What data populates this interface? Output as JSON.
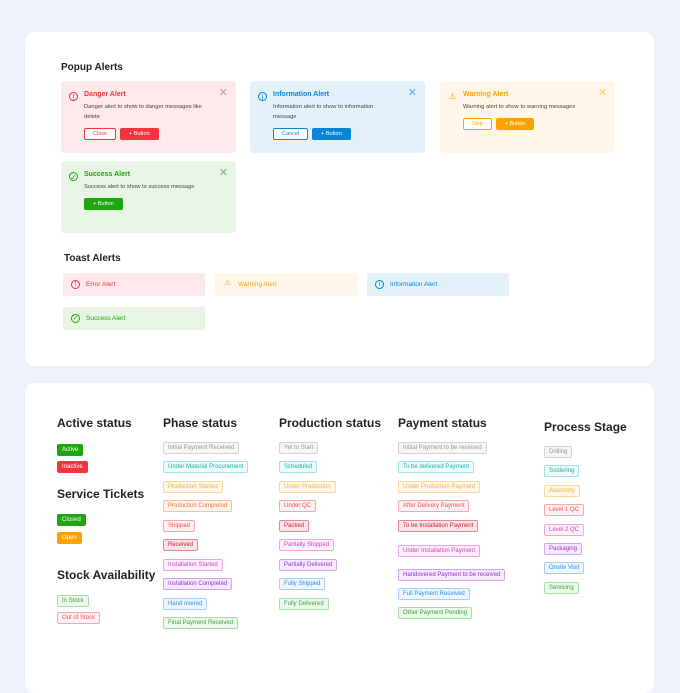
{
  "popup_alerts": {
    "title": "Popup Alerts",
    "danger": {
      "title": "Danger Alert",
      "message": "Danger alert to show to danger messages like delete",
      "secondary": "Close",
      "primary": "+ Button",
      "color": "#f5333f",
      "bg": "#fde8ea"
    },
    "info": {
      "title": "Information Alert",
      "message": "Information alert to show to information message",
      "secondary": "Cancel",
      "primary": "+ Button",
      "color": "#0a84d6",
      "bg": "#e3f1fb"
    },
    "warning": {
      "title": "Warning Alert",
      "message": "Warning alert to show to warning messages",
      "secondary": "Skip",
      "primary": "+ Button",
      "color": "#ffa200",
      "bg": "#fff5e8"
    },
    "success": {
      "title": "Success Alert",
      "message": "Success alert to show to success message",
      "primary": "+ Button",
      "color": "#1ea50f",
      "bg": "#e8f5e4"
    }
  },
  "toast_alerts": {
    "title": "Toast Alerts",
    "error": "Error Alert",
    "warning": "Warning Alert",
    "info": "Information Alert",
    "success": "Success Alert"
  },
  "active_status": {
    "title": "Active status",
    "items": [
      "Active",
      "Inactive"
    ]
  },
  "service_tickets": {
    "title": "Service Tickets",
    "items": [
      "Closed",
      "Open"
    ]
  },
  "stock": {
    "title": "Stock Availability",
    "items": [
      "In Stock",
      "Out of Stock"
    ]
  },
  "phase": {
    "title": "Phase status",
    "items": [
      "Initial Payment Received",
      "Under Material Procurement",
      "Production Started",
      "Production Completed",
      "Shipped",
      "Received",
      "Installation Started",
      "Installation Completed",
      "Hand overed",
      "Final Payment Received"
    ]
  },
  "production": {
    "title": "Production status",
    "items": [
      "Yet to Start",
      "Scheduled",
      "Under Production",
      "Under QC",
      "Packed",
      "Partially Shipped",
      "Partially Delivered",
      "Fully Shipped",
      "Fully Delivered"
    ]
  },
  "payment": {
    "title": "Payment status",
    "items": [
      "Initial Payment to be received",
      "To be delivered Payment",
      "Under Production Payment",
      "After Delivery Payment",
      "To be Installation Payment",
      "Under Installation Payment",
      "Handovered Payment to be received",
      "Full Payment Received",
      "Other Payment Pending"
    ]
  },
  "process": {
    "title": "Process Stage",
    "items": [
      "Drilling",
      "Soldering",
      "Assembly",
      "Level 1 QC",
      "Level 2 QC",
      "Packaging",
      "Onsite Visit",
      "Servicing"
    ]
  }
}
